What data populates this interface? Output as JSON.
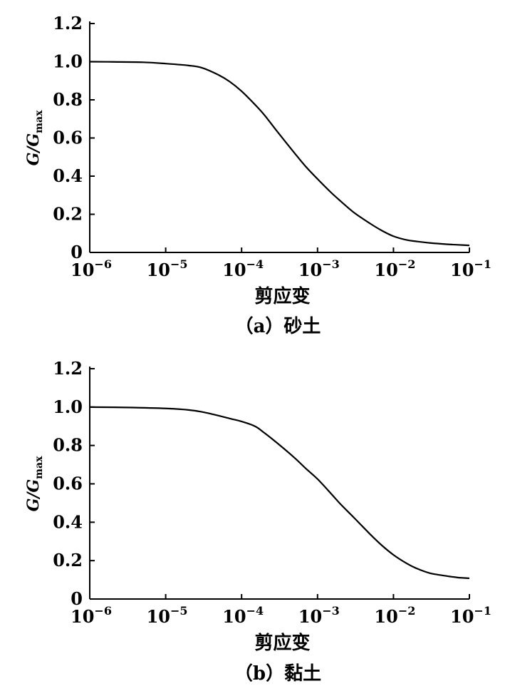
{
  "chart_data": [
    {
      "type": "line",
      "caption": "（a）砂土",
      "xlabel": "剪应变",
      "ylabel": "G/Gmax",
      "ylabel_parts": {
        "main": "G/G",
        "sub": "max"
      },
      "x_scale": "log",
      "xlim": [
        1e-06,
        0.1
      ],
      "ylim": [
        0,
        1.2
      ],
      "x_ticks": [
        {
          "value": 1e-06,
          "base": "10",
          "exp": "−6"
        },
        {
          "value": 1e-05,
          "base": "10",
          "exp": "−5"
        },
        {
          "value": 0.0001,
          "base": "10",
          "exp": "−4"
        },
        {
          "value": 0.001,
          "base": "10",
          "exp": "−3"
        },
        {
          "value": 0.01,
          "base": "10",
          "exp": "−2"
        },
        {
          "value": 0.1,
          "base": "10",
          "exp": "−1"
        }
      ],
      "y_ticks": [
        {
          "value": 0,
          "label": "0"
        },
        {
          "value": 0.2,
          "label": "0.2"
        },
        {
          "value": 0.4,
          "label": "0.4"
        },
        {
          "value": 0.6,
          "label": "0.6"
        },
        {
          "value": 0.8,
          "label": "0.8"
        },
        {
          "value": 1.0,
          "label": "1.0"
        },
        {
          "value": 1.2,
          "label": "1.2"
        }
      ],
      "series": [
        {
          "x": [
            1e-06,
            2e-06,
            5e-06,
            1e-05,
            2e-05,
            3e-05,
            5e-05,
            7e-05,
            0.0001,
            0.00015,
            0.0002,
            0.0003,
            0.0005,
            0.0007,
            0.001,
            0.0015,
            0.002,
            0.003,
            0.005,
            0.007,
            0.01,
            0.015,
            0.02,
            0.03,
            0.05,
            0.07,
            0.1
          ],
          "y": [
            1.0,
            0.999,
            0.997,
            0.99,
            0.98,
            0.968,
            0.93,
            0.895,
            0.845,
            0.775,
            0.72,
            0.63,
            0.52,
            0.45,
            0.385,
            0.315,
            0.27,
            0.21,
            0.15,
            0.115,
            0.085,
            0.065,
            0.058,
            0.05,
            0.043,
            0.04,
            0.037
          ]
        }
      ]
    },
    {
      "type": "line",
      "caption": "（b）黏土",
      "xlabel": "剪应变",
      "ylabel": "G/Gmax",
      "ylabel_parts": {
        "main": "G/G",
        "sub": "max"
      },
      "x_scale": "log",
      "xlim": [
        1e-06,
        0.1
      ],
      "ylim": [
        0,
        1.2
      ],
      "x_ticks": [
        {
          "value": 1e-06,
          "base": "10",
          "exp": "−6"
        },
        {
          "value": 1e-05,
          "base": "10",
          "exp": "−5"
        },
        {
          "value": 0.0001,
          "base": "10",
          "exp": "−4"
        },
        {
          "value": 0.001,
          "base": "10",
          "exp": "−3"
        },
        {
          "value": 0.01,
          "base": "10",
          "exp": "−2"
        },
        {
          "value": 0.1,
          "base": "10",
          "exp": "−1"
        }
      ],
      "y_ticks": [
        {
          "value": 0,
          "label": "0"
        },
        {
          "value": 0.2,
          "label": "0.2"
        },
        {
          "value": 0.4,
          "label": "0.4"
        },
        {
          "value": 0.6,
          "label": "0.6"
        },
        {
          "value": 0.8,
          "label": "0.8"
        },
        {
          "value": 1.0,
          "label": "1.0"
        },
        {
          "value": 1.2,
          "label": "1.2"
        }
      ],
      "series": [
        {
          "x": [
            1e-06,
            3e-06,
            1e-05,
            2e-05,
            3e-05,
            5e-05,
            7e-05,
            0.0001,
            0.00015,
            0.0002,
            0.0003,
            0.0005,
            0.0007,
            0.001,
            0.0015,
            0.002,
            0.003,
            0.005,
            0.007,
            0.01,
            0.015,
            0.02,
            0.03,
            0.05,
            0.07,
            0.1
          ],
          "y": [
            1.0,
            0.998,
            0.993,
            0.985,
            0.975,
            0.955,
            0.94,
            0.925,
            0.9,
            0.865,
            0.81,
            0.735,
            0.68,
            0.625,
            0.55,
            0.495,
            0.425,
            0.335,
            0.28,
            0.23,
            0.185,
            0.16,
            0.135,
            0.12,
            0.112,
            0.108
          ]
        }
      ]
    }
  ]
}
